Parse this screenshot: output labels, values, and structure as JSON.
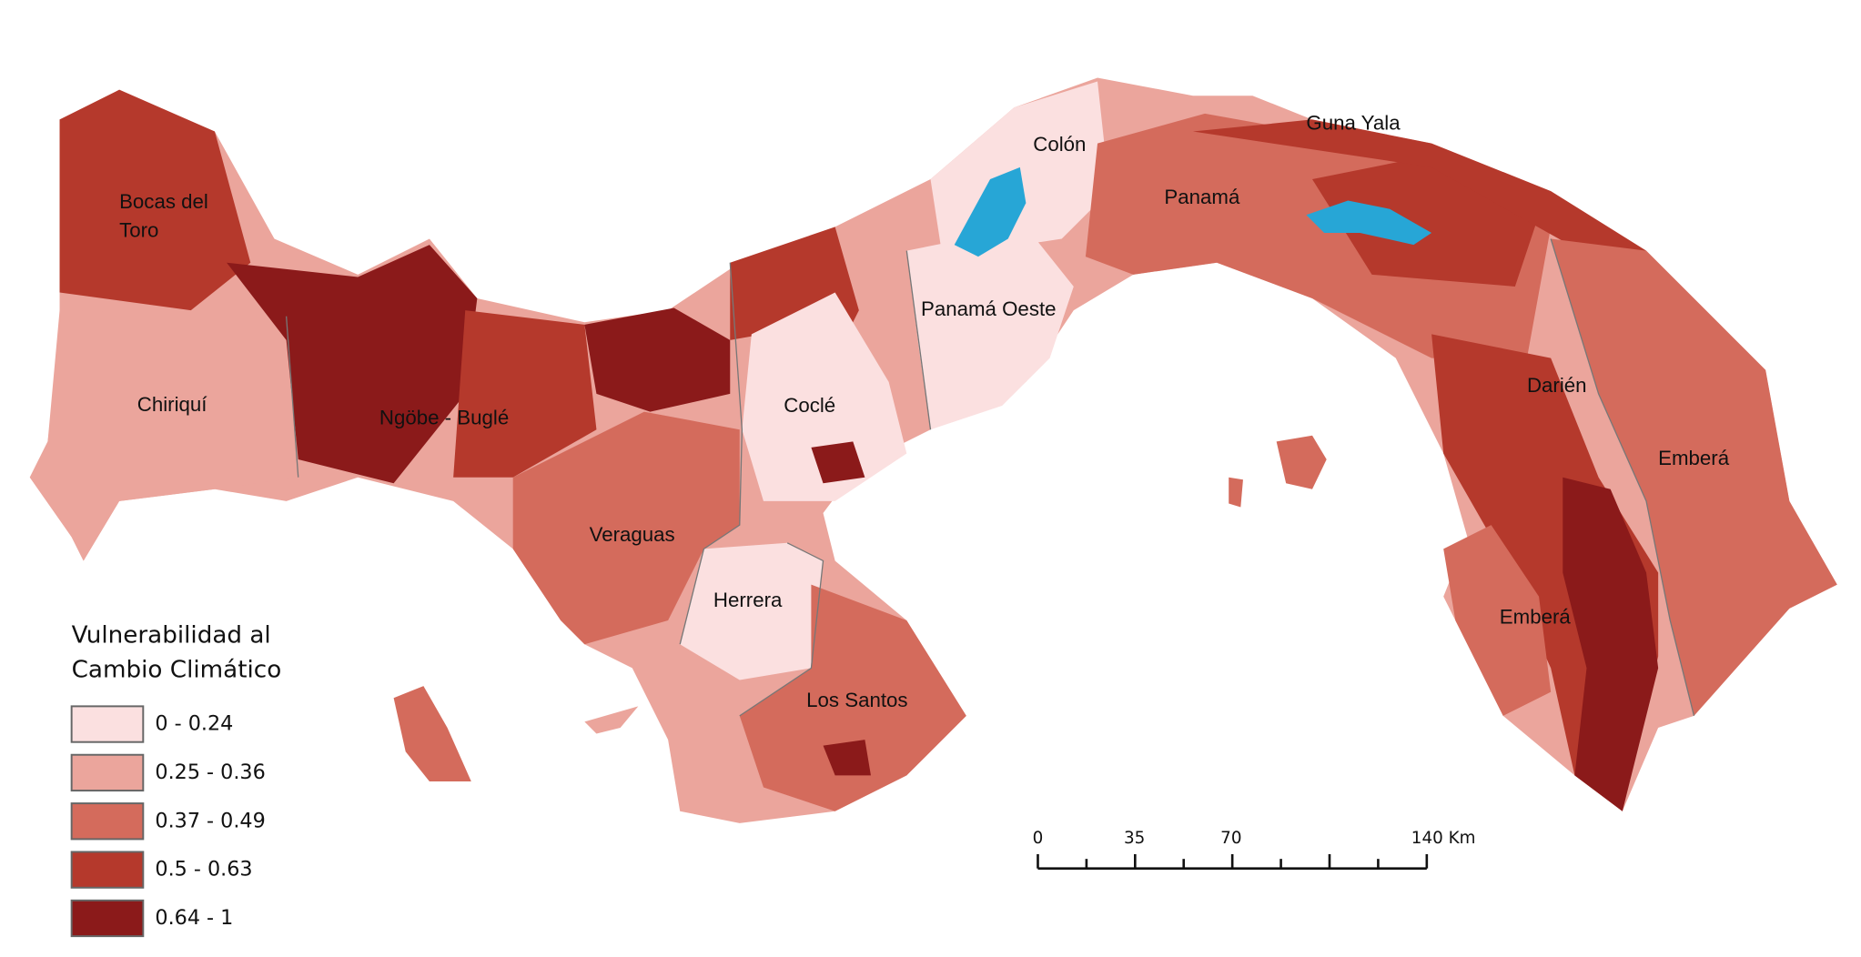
{
  "legend": {
    "title": [
      "Vulnerabilidad al",
      "Cambio Climático"
    ],
    "items": [
      {
        "label": "0 - 0.24",
        "color": "#fbe0e0"
      },
      {
        "label": "0.25 - 0.36",
        "color": "#eba59c"
      },
      {
        "label": "0.37 - 0.49",
        "color": "#d46b5c"
      },
      {
        "label": "0.5 - 0.63",
        "color": "#b5392c"
      },
      {
        "label": "0.64 - 1",
        "color": "#8b1a1a"
      }
    ]
  },
  "regions": [
    {
      "lines": [
        "Bocas del",
        "Toro"
      ]
    },
    {
      "lines": [
        "Chiriquí"
      ]
    },
    {
      "lines": [
        "Ngöbe - Buglé"
      ]
    },
    {
      "lines": [
        "Veraguas"
      ]
    },
    {
      "lines": [
        "Coclé"
      ]
    },
    {
      "lines": [
        "Herrera"
      ]
    },
    {
      "lines": [
        "Los Santos"
      ]
    },
    {
      "lines": [
        "Panamá Oeste"
      ]
    },
    {
      "lines": [
        "Colón"
      ]
    },
    {
      "lines": [
        "Panamá"
      ]
    },
    {
      "lines": [
        "Guna Yala"
      ]
    },
    {
      "lines": [
        "Darién"
      ]
    },
    {
      "lines": [
        "Emberá"
      ]
    },
    {
      "lines": [
        "Emberá"
      ]
    }
  ],
  "scale_bar": {
    "labels": [
      "0",
      "35",
      "70",
      "140 Km"
    ]
  }
}
